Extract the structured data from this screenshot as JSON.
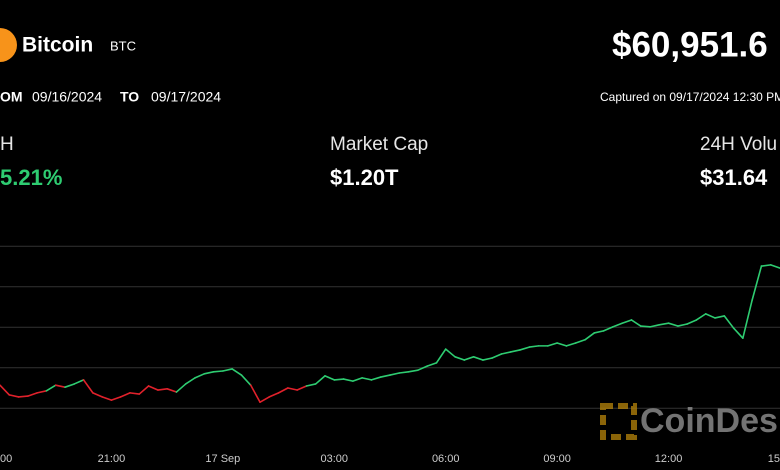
{
  "header": {
    "name": "Bitcoin",
    "symbol": "BTC",
    "price": "$60,951.6",
    "from_label": "OM",
    "from_date": "09/16/2024",
    "to_label": "TO",
    "to_date": "09/17/2024",
    "captured": "Captured on 09/17/2024 12:30 PM"
  },
  "stats": [
    {
      "label": "H",
      "value": "5.21%"
    },
    {
      "label": "Market Cap",
      "value": "$1.20T"
    },
    {
      "label": "24H Volu",
      "value": "$31.64"
    }
  ],
  "watermark": "CoinDes",
  "chart_data": {
    "type": "line",
    "categories": [
      "00",
      null,
      null,
      null,
      null,
      null,
      null,
      null,
      null,
      null,
      null,
      null,
      "21:00",
      null,
      null,
      null,
      null,
      null,
      null,
      null,
      null,
      null,
      null,
      null,
      "17 Sep",
      null,
      null,
      null,
      null,
      null,
      null,
      null,
      null,
      null,
      null,
      null,
      "03:00",
      null,
      null,
      null,
      null,
      null,
      null,
      null,
      null,
      null,
      null,
      null,
      "06:00",
      null,
      null,
      null,
      null,
      null,
      null,
      null,
      null,
      null,
      null,
      null,
      "09:00",
      null,
      null,
      null,
      null,
      null,
      null,
      null,
      null,
      null,
      null,
      null,
      "12:00",
      null,
      null,
      null,
      null,
      null,
      null,
      null,
      null,
      null,
      null,
      null,
      "15"
    ],
    "values": [
      58070,
      57830,
      57780,
      57800,
      57880,
      57930,
      58070,
      58020,
      58100,
      58200,
      57880,
      57780,
      57700,
      57780,
      57880,
      57850,
      58050,
      57950,
      57980,
      57900,
      58100,
      58250,
      58350,
      58400,
      58420,
      58470,
      58320,
      58070,
      57650,
      57780,
      57880,
      58000,
      57950,
      58050,
      58100,
      58300,
      58200,
      58220,
      58170,
      58250,
      58200,
      58270,
      58320,
      58370,
      58400,
      58440,
      58540,
      58620,
      58960,
      58770,
      58690,
      58770,
      58690,
      58740,
      58840,
      58890,
      58940,
      59010,
      59040,
      59040,
      59110,
      59040,
      59110,
      59190,
      59360,
      59410,
      59510,
      59600,
      59680,
      59530,
      59510,
      59560,
      59600,
      59530,
      59580,
      59680,
      59830,
      59730,
      59780,
      59480,
      59230,
      60170,
      61010,
      61040,
      60960
    ],
    "up_color": "#2ecc71",
    "down_color": "#e0212b",
    "ylim": [
      56000,
      62000
    ],
    "yticks": [
      57500,
      58500,
      59500,
      60500,
      61500
    ],
    "grid": true
  }
}
